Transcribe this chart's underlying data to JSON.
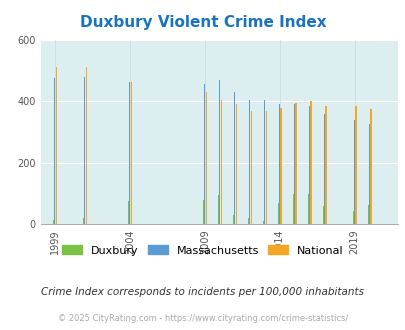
{
  "title": "Duxbury Violent Crime Index",
  "years": [
    1999,
    2001,
    2004,
    2009,
    2010,
    2011,
    2012,
    2013,
    2014,
    2015,
    2016,
    2017,
    2019,
    2020
  ],
  "duxbury": [
    15,
    20,
    75,
    80,
    95,
    30,
    20,
    10,
    68,
    100,
    100,
    60,
    45,
    62
  ],
  "massachusetts": [
    475,
    480,
    462,
    455,
    470,
    430,
    405,
    405,
    390,
    390,
    385,
    360,
    338,
    325
  ],
  "national": [
    510,
    510,
    462,
    430,
    405,
    390,
    368,
    368,
    378,
    395,
    400,
    385,
    383,
    375
  ],
  "bar_colors": {
    "duxbury": "#7bc143",
    "massachusetts": "#5b9bd5",
    "national": "#f5a623"
  },
  "background_color": "#ddeef0",
  "ylim": [
    0,
    600
  ],
  "yticks": [
    0,
    200,
    400,
    600
  ],
  "xlabel": "",
  "ylabel": "",
  "subtitle": "Crime Index corresponds to incidents per 100,000 inhabitants",
  "footer": "© 2025 CityRating.com - https://www.cityrating.com/crime-statistics/",
  "title_color": "#1a73c1",
  "subtitle_color": "#333333",
  "footer_color": "#aaaaaa",
  "legend_labels": [
    "Duxbury",
    "Massachusetts",
    "National"
  ],
  "tick_label_years": [
    1999,
    2004,
    2009,
    2014,
    2019
  ],
  "year_min": 1998,
  "year_max": 2022
}
